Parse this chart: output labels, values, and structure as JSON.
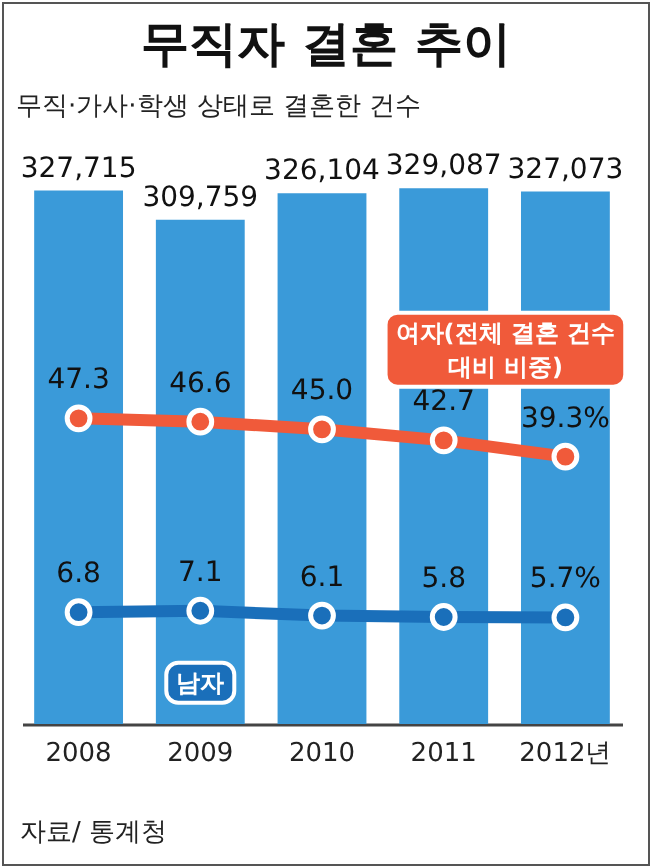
{
  "chart_data": {
    "type": "bar",
    "title": "무직자 결혼 추이",
    "subtitle": "무직·가사·학생 상태로 결혼한 건수",
    "categories": [
      "2008",
      "2009",
      "2010",
      "2011",
      "2012년"
    ],
    "series": [
      {
        "color": "#3a9ad9",
        "values": [
          327715,
          309759,
          326104,
          329087,
          327073
        ],
        "value_labels": [
          "327,715",
          "309,759",
          "326,104",
          "329,087",
          "327,073"
        ]
      },
      {
        "type": "line",
        "axis": "y2",
        "name": "여자(전체 결혼 건수 대비 비중)",
        "color": "#f05a3a",
        "values": [
          47.3,
          46.6,
          45.0,
          42.7,
          39.3
        ],
        "value_labels": [
          "47.3",
          "46.6",
          "45.0",
          "42.7",
          "39.3%"
        ]
      },
      {
        "type": "line",
        "axis": "y2",
        "name": "남자",
        "color": "#1a6fba",
        "values": [
          6.8,
          7.1,
          6.1,
          5.8,
          5.7
        ],
        "value_labels": [
          "6.8",
          "7.1",
          "6.1",
          "5.8",
          "5.7%"
        ]
      }
    ],
    "tick_labels": "x",
    "marker": "circle",
    "line_style": "solid",
    "annotations": [
      "자료/ 통계청"
    ]
  }
}
